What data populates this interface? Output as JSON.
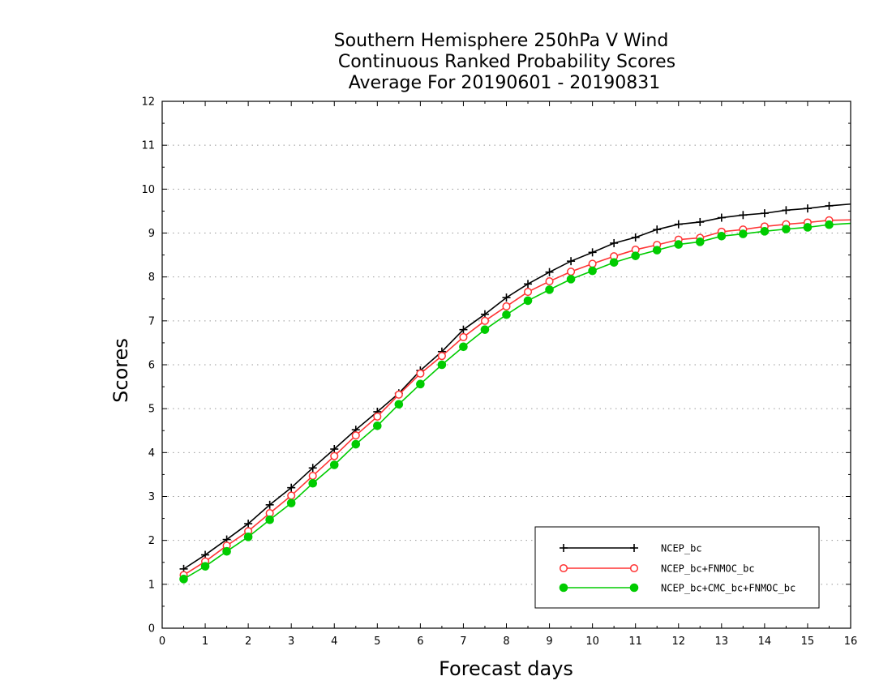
{
  "chart_data": {
    "type": "line",
    "title": [
      "Southern Hemisphere 250hPa V Wind",
      "Continuous Ranked Probability Scores",
      "Average For 20190601 - 20190831"
    ],
    "xlabel": "Forecast days",
    "ylabel": "Scores",
    "xlim": [
      0,
      16
    ],
    "ylim": [
      0,
      12
    ],
    "x_ticks": [
      0,
      1,
      2,
      3,
      4,
      5,
      6,
      7,
      8,
      9,
      10,
      11,
      12,
      13,
      14,
      15,
      16
    ],
    "y_ticks": [
      0,
      1,
      2,
      3,
      4,
      5,
      6,
      7,
      8,
      9,
      10,
      11,
      12
    ],
    "grid": "horizontal-dotted",
    "legend_position": "bottom-right",
    "x": [
      0.5,
      1,
      1.5,
      2,
      2.5,
      3,
      3.5,
      4,
      4.5,
      5,
      5.5,
      6,
      6.5,
      7,
      7.5,
      8,
      8.5,
      9,
      9.5,
      10,
      10.5,
      11,
      11.5,
      12,
      12.5,
      13,
      13.5,
      14,
      14.5,
      15,
      15.5,
      16
    ],
    "series": [
      {
        "name": "NCEP_bc",
        "color": "#000000",
        "marker": "plus",
        "values": [
          1.35,
          1.67,
          2.02,
          2.38,
          2.81,
          3.2,
          3.65,
          4.08,
          4.52,
          4.93,
          5.35,
          5.87,
          6.3,
          6.8,
          7.15,
          7.53,
          7.84,
          8.11,
          8.36,
          8.56,
          8.77,
          8.9,
          9.08,
          9.2,
          9.25,
          9.35,
          9.41,
          9.45,
          9.52,
          9.56,
          9.62,
          9.66
        ]
      },
      {
        "name": "NCEP_bc+FNMOC_bc",
        "color": "#ff3333",
        "marker": "open-circle",
        "values": [
          1.21,
          1.52,
          1.88,
          2.21,
          2.62,
          3.02,
          3.47,
          3.92,
          4.39,
          4.82,
          5.32,
          5.8,
          6.2,
          6.63,
          7.0,
          7.33,
          7.66,
          7.9,
          8.12,
          8.3,
          8.47,
          8.62,
          8.73,
          8.85,
          8.89,
          9.03,
          9.08,
          9.15,
          9.2,
          9.24,
          9.29,
          9.3
        ]
      },
      {
        "name": "NCEP_bc+CMC_bc+FNMOC_bc",
        "color": "#00cc00",
        "marker": "filled-circle",
        "values": [
          1.12,
          1.41,
          1.75,
          2.08,
          2.47,
          2.85,
          3.3,
          3.72,
          4.19,
          4.61,
          5.1,
          5.56,
          6.0,
          6.41,
          6.8,
          7.14,
          7.46,
          7.71,
          7.95,
          8.14,
          8.33,
          8.48,
          8.61,
          8.74,
          8.8,
          8.93,
          8.98,
          9.04,
          9.09,
          9.13,
          9.19,
          9.22
        ]
      }
    ]
  }
}
